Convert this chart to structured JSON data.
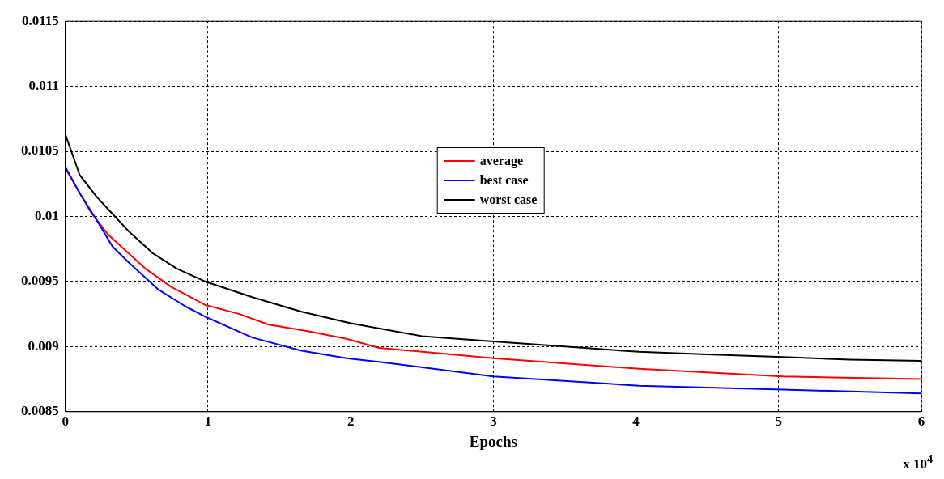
{
  "chart_data": {
    "type": "line",
    "xlabel": "Epochs",
    "annotations": [
      "x 10$^{4}$"
    ],
    "xlim": [
      0,
      6
    ],
    "xticks": [
      0,
      1,
      2,
      3,
      4,
      5,
      6
    ],
    "ylim": [
      0.0085,
      0.0115
    ],
    "yticks": [
      0.0085,
      0.009,
      0.0095,
      0.01,
      0.0105,
      0.011,
      0.0115
    ],
    "grid": true,
    "legend": "top",
    "line_style": "solid",
    "marker": "none",
    "series": [
      {
        "name": "average",
        "color": "#ff0000",
        "x": [
          0,
          0.18,
          0.3,
          0.41,
          0.56,
          0.74,
          0.93,
          0.98,
          1.22,
          1.42,
          1.69,
          1.97,
          2.2,
          3,
          4.02,
          5.03,
          6
        ],
        "values": [
          0.01037,
          0.01003,
          0.00986,
          0.00975,
          0.0096,
          0.00946,
          0.00935,
          0.00932,
          0.00925,
          0.00917,
          0.00912,
          0.00906,
          0.00899,
          0.00891,
          0.00883,
          0.00877,
          0.00875
        ]
      },
      {
        "name": "best case",
        "color": "#0000ff",
        "x": [
          0,
          0.1,
          0.22,
          0.33,
          0.44,
          0.56,
          0.65,
          0.84,
          0.98,
          1.31,
          1.65,
          1.97,
          2.22,
          3,
          4.02,
          5.03,
          6
        ],
        "values": [
          0.01038,
          0.01018,
          0.00997,
          0.00977,
          0.00965,
          0.00953,
          0.00944,
          0.00931,
          0.00923,
          0.00907,
          0.00897,
          0.00891,
          0.00888,
          0.00877,
          0.0087,
          0.00867,
          0.00864
        ]
      },
      {
        "name": "worst case",
        "color": "#000000",
        "x": [
          0,
          0.1,
          0.22,
          0.33,
          0.44,
          0.61,
          0.78,
          0.98,
          1.31,
          1.65,
          2,
          2.5,
          3,
          3.5,
          4.02,
          4.5,
          5.03,
          5.5,
          6
        ],
        "values": [
          0.01063,
          0.01032,
          0.01015,
          0.01002,
          0.00989,
          0.00972,
          0.0096,
          0.0095,
          0.00938,
          0.00927,
          0.00918,
          0.00908,
          0.00904,
          0.009,
          0.00896,
          0.00894,
          0.00892,
          0.0089,
          0.00889
        ]
      }
    ]
  }
}
